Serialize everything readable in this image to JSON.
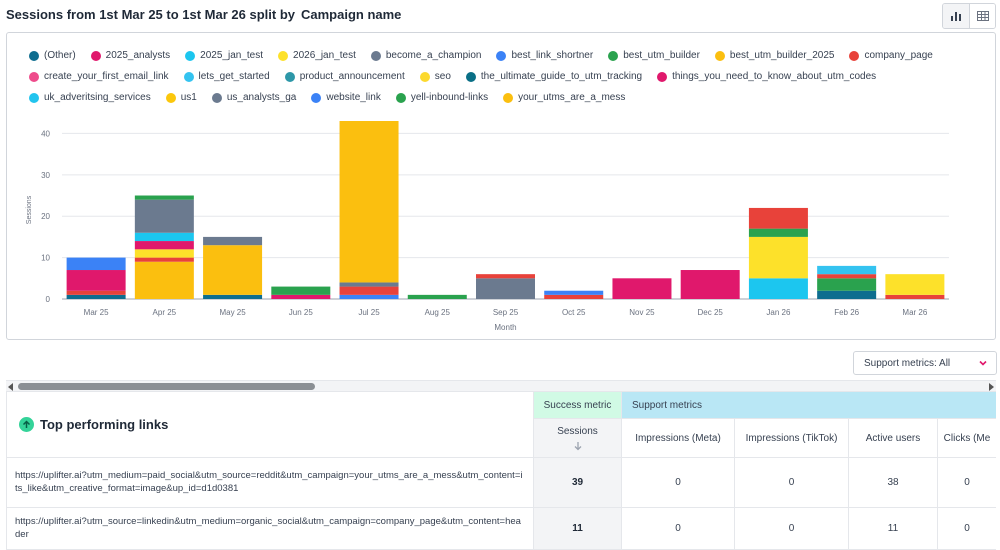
{
  "header": {
    "title": "Sessions from 1st Mar 25 to 1st Mar 26 split by",
    "dimension": "Campaign name",
    "view_toggle": [
      "chart-icon",
      "table-icon"
    ]
  },
  "legend": [
    {
      "label": "(Other)",
      "color": "#0e6d8f"
    },
    {
      "label": "2025_analysts",
      "color": "#e0186c"
    },
    {
      "label": "2025_jan_test",
      "color": "#1cc6ef"
    },
    {
      "label": "2026_jan_test",
      "color": "#fde12a"
    },
    {
      "label": "become_a_champion",
      "color": "#6b7a8f"
    },
    {
      "label": "best_link_shortner",
      "color": "#3b82f6"
    },
    {
      "label": "best_utm_builder",
      "color": "#2aa24e"
    },
    {
      "label": "best_utm_builder_2025",
      "color": "#fbbf0f"
    },
    {
      "label": "company_page",
      "color": "#e8423a"
    },
    {
      "label": "create_your_first_email_link",
      "color": "#ee4b8b"
    },
    {
      "label": "lets_get_started",
      "color": "#34c3f0"
    },
    {
      "label": "product_announcement",
      "color": "#2d97a8"
    },
    {
      "label": "seo",
      "color": "#fcd92e"
    },
    {
      "label": "the_ultimate_guide_to_utm_tracking",
      "color": "#0a6f86"
    },
    {
      "label": "things_you_need_to_know_about_utm_codes",
      "color": "#e0186c"
    },
    {
      "label": "uk_adveritsing_services",
      "color": "#22c4ee"
    },
    {
      "label": "us1",
      "color": "#fbc70c"
    },
    {
      "label": "us_analysts_ga",
      "color": "#6b7a8f"
    },
    {
      "label": "website_link",
      "color": "#3b82f6"
    },
    {
      "label": "yell-inbound-links",
      "color": "#2aa24e"
    },
    {
      "label": "your_utms_are_a_mess",
      "color": "#fbbf0f"
    }
  ],
  "chart_data": {
    "type": "bar",
    "stacked": true,
    "title": "",
    "xlabel": "Month",
    "ylabel": "Sessions",
    "ylim": [
      0,
      43
    ],
    "yticks": [
      0,
      10,
      20,
      30,
      40
    ],
    "grid": true,
    "legend_position": "top",
    "categories": [
      "Mar 25",
      "Apr 25",
      "May 25",
      "Jun 25",
      "Jul 25",
      "Aug 25",
      "Sep 25",
      "Oct 25",
      "Nov 25",
      "Dec 25",
      "Jan 26",
      "Feb 26",
      "Mar 26"
    ],
    "stacks": [
      [
        {
          "name": "(Other)",
          "value": 1,
          "color": "#0e6d8f"
        },
        {
          "name": "company_page",
          "value": 1,
          "color": "#e8423a"
        },
        {
          "name": "2025_analysts",
          "value": 5,
          "color": "#e0186c"
        },
        {
          "name": "best_link_shortner",
          "value": 3,
          "color": "#3b82f6"
        }
      ],
      [
        {
          "name": "your_utms_are_a_mess",
          "value": 9,
          "color": "#fbbf0f"
        },
        {
          "name": "company_page",
          "value": 1,
          "color": "#e8423a"
        },
        {
          "name": "2026_jan_test",
          "value": 2,
          "color": "#fde12a"
        },
        {
          "name": "2025_analysts",
          "value": 2,
          "color": "#e0186c"
        },
        {
          "name": "2025_jan_test",
          "value": 2,
          "color": "#1cc6ef"
        },
        {
          "name": "become_a_champion",
          "value": 8,
          "color": "#6b7a8f"
        },
        {
          "name": "best_utm_builder",
          "value": 1,
          "color": "#2aa24e"
        }
      ],
      [
        {
          "name": "(Other)",
          "value": 1,
          "color": "#0e6d8f"
        },
        {
          "name": "your_utms_are_a_mess",
          "value": 12,
          "color": "#fbbf0f"
        },
        {
          "name": "best_link_shortner",
          "value": 2,
          "color": "#6b7a8f"
        }
      ],
      [
        {
          "name": "2025_analysts",
          "value": 1,
          "color": "#e0186c"
        },
        {
          "name": "best_utm_builder",
          "value": 2,
          "color": "#2aa24e"
        }
      ],
      [
        {
          "name": "best_link_shortner",
          "value": 1,
          "color": "#3b82f6"
        },
        {
          "name": "company_page",
          "value": 2,
          "color": "#e8423a"
        },
        {
          "name": "become_a_champion",
          "value": 1,
          "color": "#6b7a8f"
        },
        {
          "name": "your_utms_are_a_mess",
          "value": 39,
          "color": "#fbbf0f"
        }
      ],
      [
        {
          "name": "best_utm_builder",
          "value": 1,
          "color": "#2aa24e"
        }
      ],
      [
        {
          "name": "become_a_champion",
          "value": 5,
          "color": "#6b7a8f"
        },
        {
          "name": "company_page",
          "value": 1,
          "color": "#e8423a"
        }
      ],
      [
        {
          "name": "company_page",
          "value": 1,
          "color": "#e8423a"
        },
        {
          "name": "best_link_shortner",
          "value": 1,
          "color": "#3b82f6"
        }
      ],
      [
        {
          "name": "2025_analysts",
          "value": 5,
          "color": "#e0186c"
        }
      ],
      [
        {
          "name": "2025_analysts",
          "value": 7,
          "color": "#e0186c"
        }
      ],
      [
        {
          "name": "2025_jan_test",
          "value": 5,
          "color": "#1cc6ef"
        },
        {
          "name": "2026_jan_test",
          "value": 10,
          "color": "#fde12a"
        },
        {
          "name": "best_utm_builder",
          "value": 2,
          "color": "#2aa24e"
        },
        {
          "name": "company_page",
          "value": 5,
          "color": "#e8423a"
        }
      ],
      [
        {
          "name": "(Other)",
          "value": 2,
          "color": "#0e6d8f"
        },
        {
          "name": "best_utm_builder",
          "value": 3,
          "color": "#2aa24e"
        },
        {
          "name": "company_page",
          "value": 1,
          "color": "#e8423a"
        },
        {
          "name": "2025_jan_test",
          "value": 2,
          "color": "#34c3f0"
        }
      ],
      [
        {
          "name": "company_page",
          "value": 1,
          "color": "#e8423a"
        },
        {
          "name": "2026_jan_test",
          "value": 5,
          "color": "#fde12a"
        }
      ]
    ]
  },
  "support_metrics_select": {
    "label": "Support metrics: All"
  },
  "table": {
    "title": "Top performing links",
    "group_success": "Success metric",
    "group_support": "Support metrics",
    "columns": [
      "Sessions",
      "Impressions (Meta)",
      "Impressions (TikTok)",
      "Active users",
      "Clicks (Me"
    ],
    "rows": [
      {
        "link": "https://uplifter.ai?utm_medium=paid_social&utm_source=reddit&utm_campaign=your_utms_are_a_mess&utm_content=its_like&utm_creative_format=image&up_id=d1d0381",
        "values": [
          "39",
          "0",
          "0",
          "38",
          "0"
        ]
      },
      {
        "link": "https://uplifter.ai?utm_source=linkedin&utm_medium=organic_social&utm_campaign=company_page&utm_content=header",
        "values": [
          "11",
          "0",
          "0",
          "11",
          "0"
        ]
      }
    ]
  }
}
